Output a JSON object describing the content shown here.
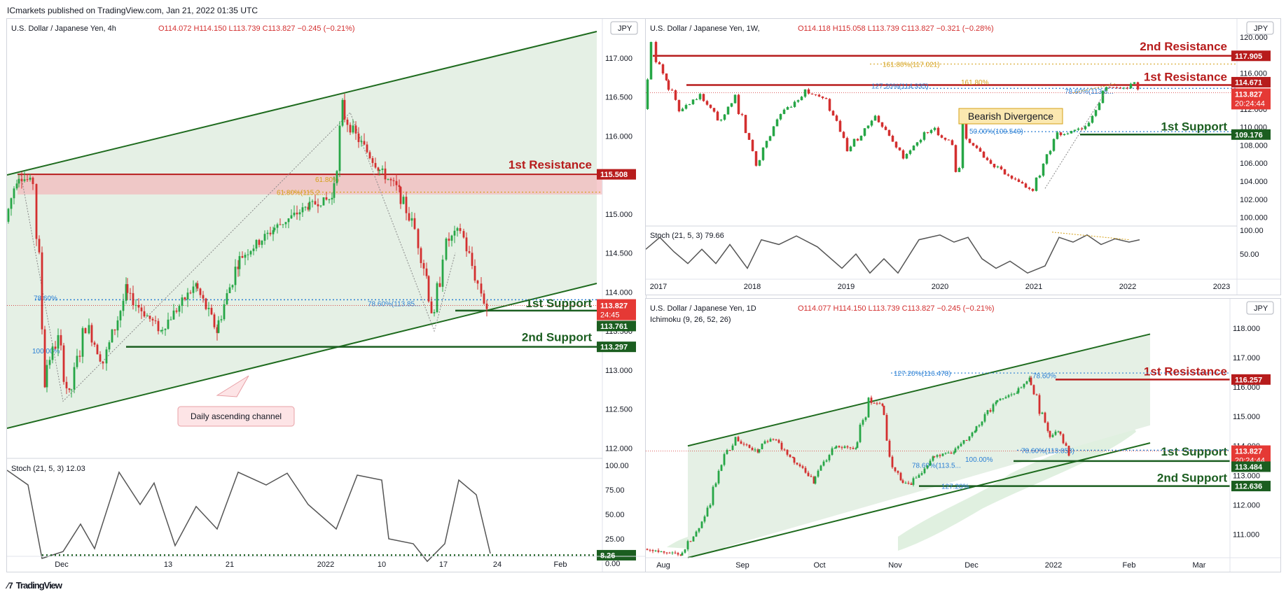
{
  "header": {
    "publisher": "ICmarkets published on TradingView.com, Jan 21, 2022 01:35 UTC"
  },
  "footer": {
    "logo": "TradingView"
  },
  "colors": {
    "up": "#26a646",
    "down": "#d32f2f",
    "resistance": "#b71c1c",
    "support": "#1b5e20",
    "channel": "#1e6b1e",
    "fib": "#2a7fd4",
    "fib_gold": "#d4a017",
    "stoch": "#555555"
  },
  "chart_data": [
    {
      "id": "h4",
      "type": "candlestick",
      "symbol": "U.S. Dollar / Japanese Yen, 4h",
      "ohlc": "O114.072 H114.150 L113.739 C113.827 −0.245 (−0.21%)",
      "currency": "JPY",
      "y_ticks": [
        "117.000",
        "116.500",
        "116.000",
        "115.500",
        "115.000",
        "114.500",
        "114.000",
        "113.500",
        "113.000",
        "112.500",
        "112.000"
      ],
      "x_ticks": [
        "Dec",
        "13",
        "21",
        "2022",
        "10",
        "17",
        "24",
        "Feb"
      ],
      "ylim": [
        111.85,
        117.5
      ],
      "levels": [
        {
          "name": "1st Resistance",
          "value": 115.508,
          "label": "115.508",
          "role": "resistance"
        },
        {
          "name": "1st Support",
          "value": 113.761,
          "label": "113.761",
          "role": "support"
        },
        {
          "name": "2nd Support",
          "value": 113.297,
          "label": "113.297",
          "role": "support"
        }
      ],
      "current_price": {
        "value": 113.827,
        "label": "113.827",
        "countdown": "24:45"
      },
      "fib_labels": [
        "61.80%",
        "61.80%(115.2...",
        "78.60%",
        "78.60%(113.85...",
        "100.00%"
      ],
      "annotation": "Daily ascending channel",
      "stoch": {
        "label": "Stoch (21, 5, 3)",
        "value": "12.03",
        "ticks": [
          "100.00",
          "75.00",
          "50.00",
          "25.00",
          "0.00"
        ],
        "level": "8.26"
      }
    },
    {
      "id": "w1",
      "type": "candlestick",
      "symbol": "U.S. Dollar / Japanese Yen, 1W,",
      "ohlc": "O114.118 H115.058 L113.739 C113.827 −0.321 (−0.28%)",
      "currency": "JPY",
      "y_ticks": [
        "120.000",
        "118.000",
        "116.000",
        "114.000",
        "112.000",
        "110.000",
        "108.000",
        "106.000",
        "104.000",
        "102.000",
        "100.000"
      ],
      "x_ticks": [
        "2017",
        "2018",
        "2019",
        "2020",
        "2021",
        "2022",
        "2023"
      ],
      "ylim": [
        99.5,
        122.0
      ],
      "levels": [
        {
          "name": "2nd Resistance",
          "value": 117.905,
          "label": "117.905",
          "role": "resistance"
        },
        {
          "name": "1st Resistance",
          "value": 114.671,
          "label": "114.671",
          "role": "resistance"
        },
        {
          "name": "1st Support",
          "value": 109.176,
          "label": "109.176",
          "role": "support"
        }
      ],
      "current_price": {
        "value": 113.827,
        "label": "113.827",
        "countdown": "20:24:44"
      },
      "fib_labels": [
        "161.80%(117.021)",
        "161.80%",
        "127.20%(114.335)",
        "78.60%(113.8...",
        "50.00%(109.549)"
      ],
      "annotation": "Bearish Divergence",
      "stoch": {
        "label": "Stoch (21, 5, 3)",
        "value": "79.66",
        "ticks": [
          "100.00",
          "50.00"
        ]
      }
    },
    {
      "id": "d1",
      "type": "candlestick",
      "symbol": "U.S. Dollar / Japanese Yen, 1D",
      "indicator": "Ichimoku (9, 26, 52, 26)",
      "ohlc": "O114.077 H114.150 L113.739 C113.827 −0.245 (−0.21%)",
      "currency": "JPY",
      "y_ticks": [
        "118.000",
        "117.000",
        "116.000",
        "115.000",
        "114.000",
        "113.000",
        "112.000",
        "111.000"
      ],
      "x_ticks": [
        "Aug",
        "Sep",
        "Oct",
        "Nov",
        "Dec",
        "2022",
        "Feb",
        "Mar"
      ],
      "ylim": [
        110.2,
        119.0
      ],
      "levels": [
        {
          "name": "1st Resistance",
          "value": 116.257,
          "label": "116.257",
          "role": "resistance"
        },
        {
          "name": "1st Support",
          "value": 113.484,
          "label": "113.484",
          "role": "support"
        },
        {
          "name": "2nd Support",
          "value": 112.636,
          "label": "112.636",
          "role": "support"
        }
      ],
      "current_price": {
        "value": 113.827,
        "label": "113.827",
        "countdown": "20:24:44"
      },
      "fib_labels": [
        "127.20%(116.478)",
        "78.60%",
        "78.60%(113.853)",
        "100.00%",
        "78.60%(113.5...",
        "127.20%"
      ]
    }
  ]
}
